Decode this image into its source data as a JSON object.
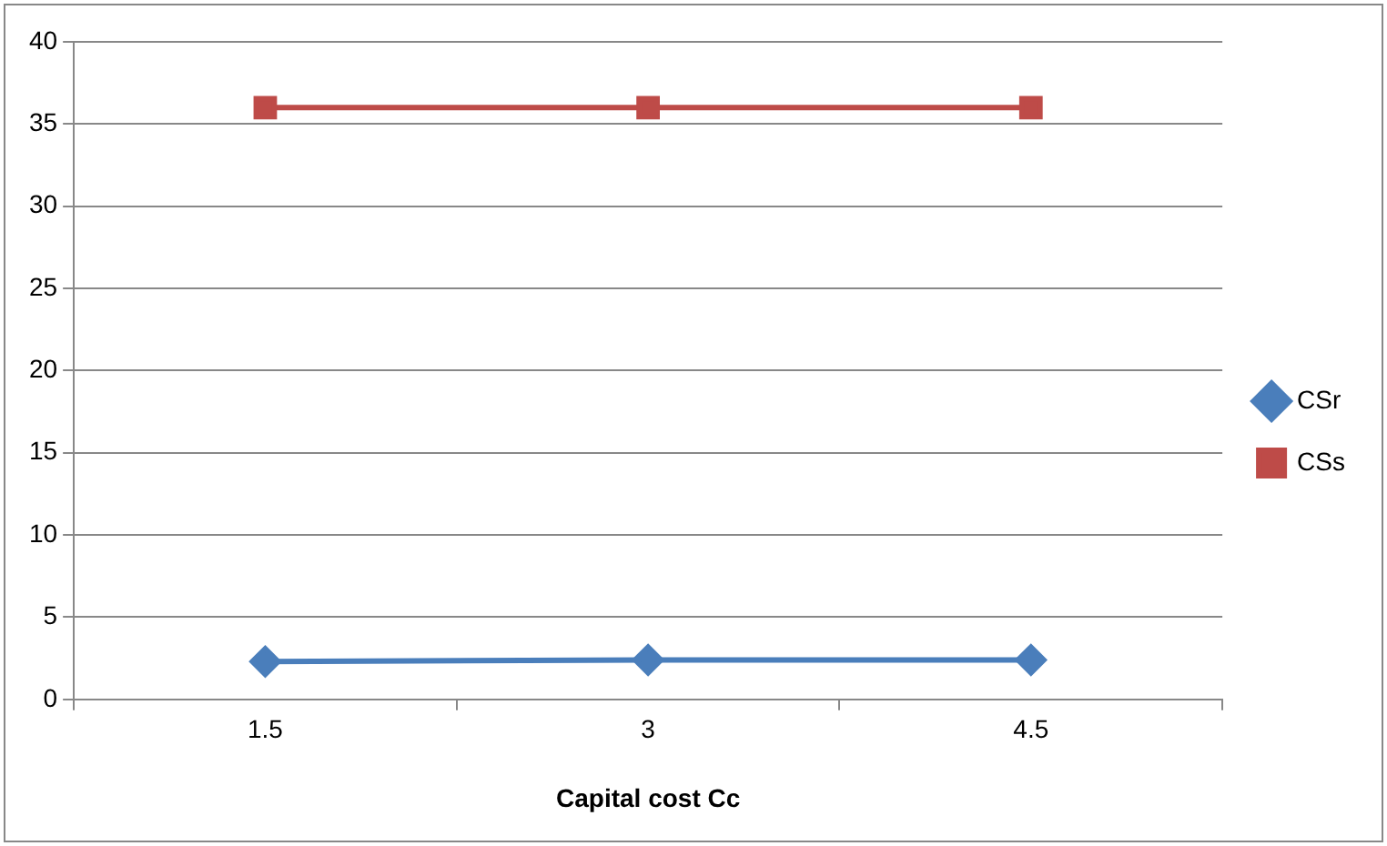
{
  "chart_data": {
    "type": "line",
    "xlabel": "Capital cost Cc",
    "categories": [
      "1.5",
      "3",
      "4.5"
    ],
    "series": [
      {
        "name": "CSr",
        "color": "#4a7ebb",
        "values": [
          2.3,
          2.4,
          2.4
        ],
        "marker": "diamond"
      },
      {
        "name": "CSs",
        "color": "#be4b48",
        "values": [
          36,
          36,
          36
        ],
        "marker": "square"
      }
    ],
    "ylim": [
      0,
      40
    ],
    "yticks": [
      0,
      5,
      10,
      15,
      20,
      25,
      30,
      35,
      40
    ],
    "grid": "y",
    "legend": "right",
    "line_style": "solid"
  }
}
